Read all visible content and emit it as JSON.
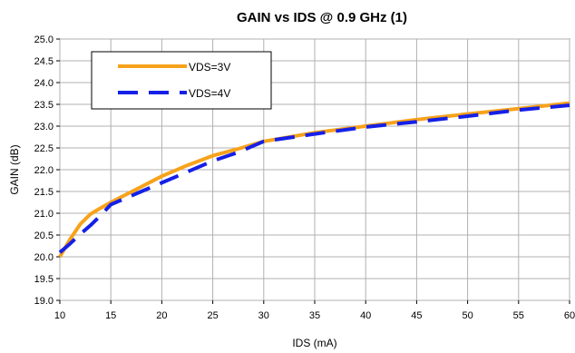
{
  "chart_data": {
    "type": "line",
    "title": "GAIN vs IDS @ 0.9 GHz (1)",
    "xlabel": "IDS (mA)",
    "ylabel": "GAIN (dB)",
    "xlim": [
      10,
      60
    ],
    "ylim": [
      19.0,
      25.0
    ],
    "x_ticks": [
      "10",
      "15",
      "20",
      "25",
      "30",
      "35",
      "40",
      "45",
      "50",
      "55",
      "60"
    ],
    "y_ticks": [
      "19.0",
      "19.5",
      "20.0",
      "20.5",
      "21.0",
      "21.5",
      "22.0",
      "22.5",
      "23.0",
      "23.5",
      "24.0",
      "24.5",
      "25.0"
    ],
    "grid": true,
    "legend_position": "top-left",
    "series": [
      {
        "name": "VDS=3V",
        "color": "#f7a21b",
        "style": "solid",
        "x": [
          10,
          11,
          12,
          13,
          14,
          15,
          17.5,
          20,
          22.5,
          25,
          27.5,
          30,
          35,
          40,
          45,
          50,
          55,
          60
        ],
        "y": [
          20.0,
          20.4,
          20.75,
          20.98,
          21.12,
          21.25,
          21.55,
          21.85,
          22.1,
          22.32,
          22.48,
          22.65,
          22.85,
          23.0,
          23.15,
          23.28,
          23.4,
          23.53
        ]
      },
      {
        "name": "VDS=4V",
        "color": "#1520e6",
        "style": "dashed",
        "x": [
          10,
          11,
          12,
          13,
          14,
          15,
          17.5,
          20,
          22.5,
          25,
          27.5,
          30,
          35,
          40,
          45,
          50,
          55,
          60
        ],
        "y": [
          20.1,
          20.3,
          20.52,
          20.72,
          20.95,
          21.2,
          21.45,
          21.7,
          21.95,
          22.2,
          22.4,
          22.65,
          22.82,
          22.98,
          23.1,
          23.23,
          23.37,
          23.48
        ]
      }
    ]
  }
}
